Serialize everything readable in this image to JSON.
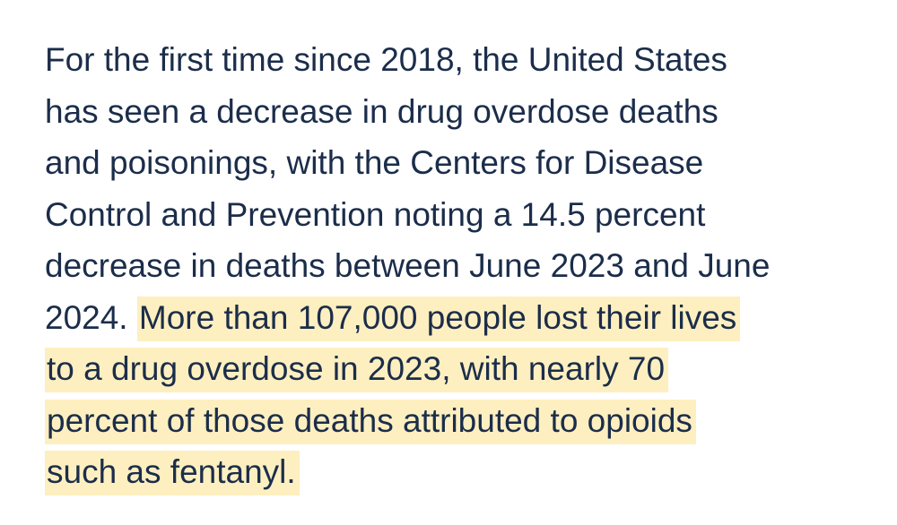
{
  "article": {
    "highlight_color": "#fdefc0",
    "text_color": "#1b2d4a",
    "lines": [
      "For the first time since 2018, the United States",
      "has seen a decrease in drug overdose deaths",
      "and poisonings, with the Centers for Disease",
      "Control and Prevention noting a 14.5 percent",
      "decrease in deaths between June 2023 and June"
    ],
    "line6_plain": "2024. ",
    "highlighted_lines": [
      "More than 107,000 people lost their lives",
      "to a drug overdose in 2023, with nearly 70",
      "percent of those deaths attributed to opioids",
      "such as fentanyl."
    ]
  }
}
